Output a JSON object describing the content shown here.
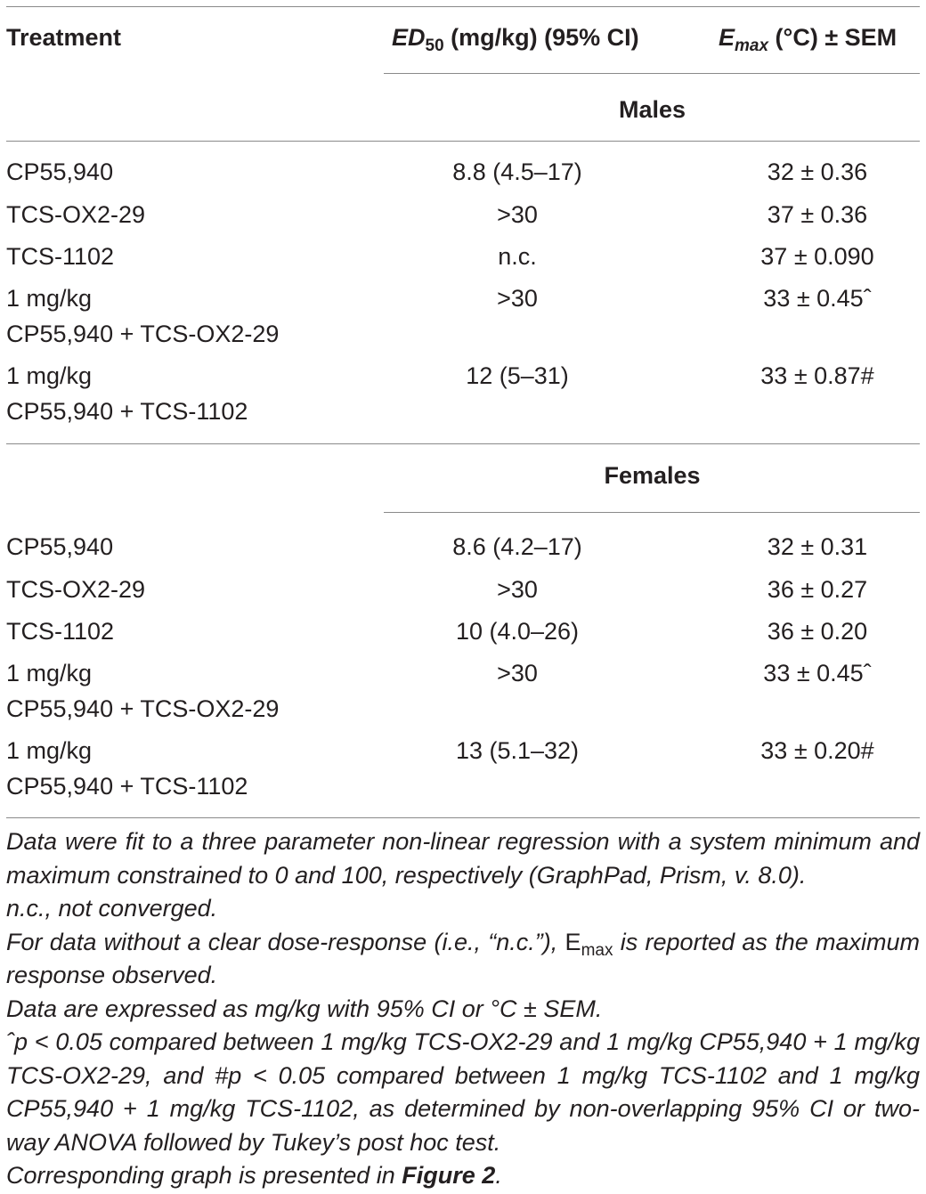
{
  "header": {
    "treatment": "Treatment",
    "ed50_main": "ED",
    "ed50_sub": "50",
    "ed50_rest": " (mg/kg) (95% CI)",
    "emax_main": "E",
    "emax_sub": "max",
    "emax_rest": " (°C) ± SEM"
  },
  "groups": {
    "males": "Males",
    "females": "Females"
  },
  "males_rows": [
    {
      "treatment": "CP55,940",
      "ed50": "8.8 (4.5–17)",
      "emax": "32 ± 0.36"
    },
    {
      "treatment": "TCS-OX2-29",
      "ed50": ">30",
      "emax": "37 ± 0.36"
    },
    {
      "treatment": "TCS-1102",
      "ed50": "n.c.",
      "emax": "37 ± 0.090"
    },
    {
      "treatment_line1": "1 mg/kg",
      "treatment_line2": "CP55,940 + TCS-OX2-29",
      "ed50": ">30",
      "emax": "33 ± 0.45ˆ"
    },
    {
      "treatment_line1": "1 mg/kg",
      "treatment_line2": "CP55,940 + TCS-1102",
      "ed50": "12 (5–31)",
      "emax": "33 ± 0.87#"
    }
  ],
  "females_rows": [
    {
      "treatment": "CP55,940",
      "ed50": "8.6 (4.2–17)",
      "emax": "32 ± 0.31"
    },
    {
      "treatment": "TCS-OX2-29",
      "ed50": ">30",
      "emax": "36 ± 0.27"
    },
    {
      "treatment": "TCS-1102",
      "ed50": "10 (4.0–26)",
      "emax": "36 ± 0.20"
    },
    {
      "treatment_line1": "1 mg/kg",
      "treatment_line2": "CP55,940 + TCS-OX2-29",
      "ed50": ">30",
      "emax": "33 ± 0.45ˆ"
    },
    {
      "treatment_line1": "1 mg/kg",
      "treatment_line2": "CP55,940 + TCS-1102",
      "ed50": "13 (5.1–32)",
      "emax": "33 ± 0.20#"
    }
  ],
  "notes": {
    "n1": "Data were fit to a three parameter non-linear regression with a system minimum and maximum constrained to 0 and 100, respectively (GraphPad, Prism, v. 8.0).",
    "n2": "n.c., not converged.",
    "n3_pre": "For data without a clear dose-response (i.e., “n.c.”), ",
    "n3_e": "E",
    "n3_sub": "max",
    "n3_post": " is reported as the maximum response observed.",
    "n4": "Data are expressed as mg/kg with 95% CI or °C ± SEM.",
    "n5": "ˆp < 0.05 compared between 1 mg/kg TCS-OX2-29 and 1 mg/kg CP55,940 + 1 mg/kg TCS-OX2-29, and #p < 0.05 compared between 1 mg/kg TCS-1102 and 1 mg/kg CP55,940 + 1 mg/kg TCS-1102, as determined by non-overlapping 95% CI or two-way ANOVA followed by Tukey’s post hoc test.",
    "n6_pre": "Corresponding graph is presented in ",
    "n6_link": "Figure 2",
    "n6_post": "."
  }
}
